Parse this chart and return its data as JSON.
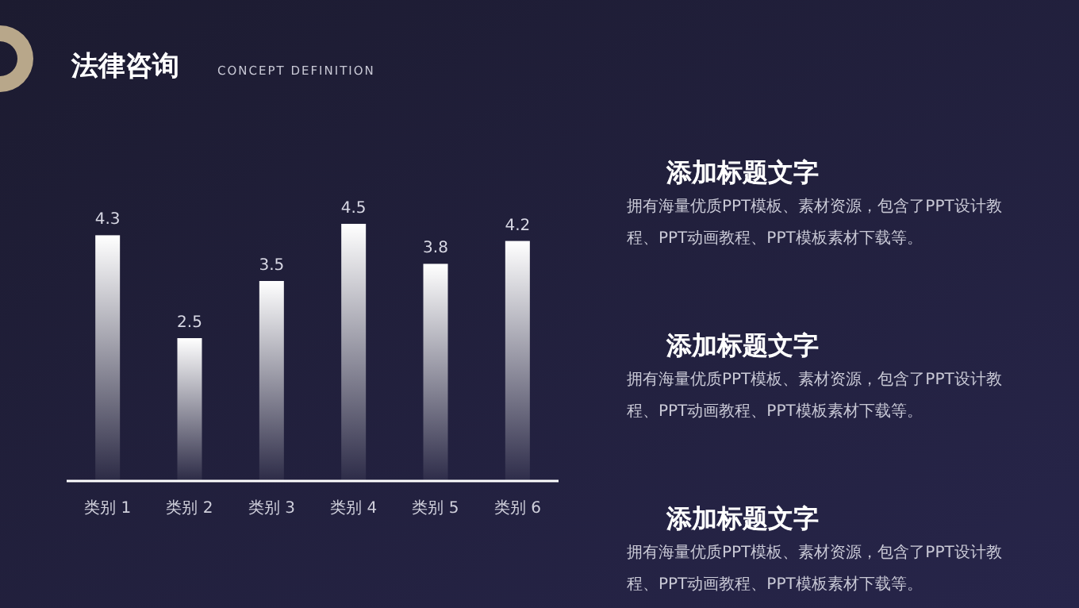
{
  "chart_data": {
    "type": "bar",
    "title": "法律咨询",
    "subtitle": "CONCEPT DEFINITION",
    "categories": [
      "类别 1",
      "类别 2",
      "类别 3",
      "类别 4",
      "类别 5",
      "类别 6"
    ],
    "values": [
      4.3,
      2.5,
      3.5,
      4.5,
      3.8,
      4.2
    ],
    "color": "#ffffff",
    "data_labels": true,
    "annotations": [
      "添加标题文字",
      "拥有海量优质PPT模板、素材资源，包含了PPT设计教程、PPT动画教程、PPT模板素材下载等。",
      "添加标题文字",
      "拥有海量优质PPT模板、素材资源，包含了PPT设计教程、PPT动画教程、PPT模板素材下载等。",
      "添加标题文字",
      "拥有海量优质PPT模板、素材资源，包含了PPT设计教程、PPT动画教程、PPT模板素材下载等。"
    ]
  }
}
